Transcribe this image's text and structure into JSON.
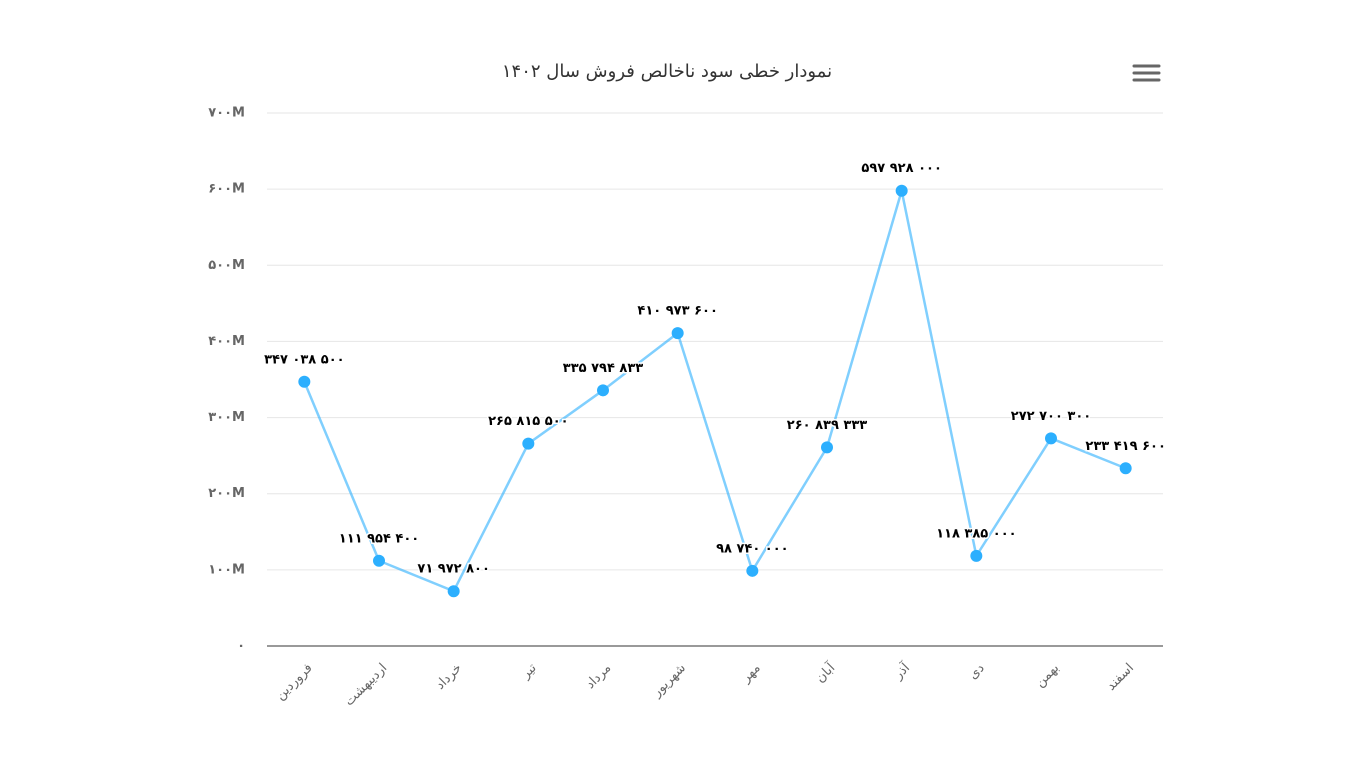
{
  "chart_data": {
    "type": "line",
    "title": "نمودار خطی سود ناخالص فروش سال ۱۴۰۲",
    "categories": [
      "فروردین",
      "اردیبهشت",
      "خرداد",
      "تیر",
      "مرداد",
      "شهریور",
      "مهر",
      "آبان",
      "آذر",
      "دی",
      "بهمن",
      "اسفند"
    ],
    "values": [
      347038500,
      111954400,
      71972800,
      265815500,
      335794833,
      410973600,
      98740000,
      260839333,
      597928000,
      118385000,
      272700300,
      233419600
    ],
    "value_labels": [
      "۳۴۷ ۰۳۸ ۵۰۰",
      "۱۱۱ ۹۵۴ ۴۰۰",
      "۷۱ ۹۷۲ ۸۰۰",
      "۲۶۵ ۸۱۵ ۵۰۰",
      "۳۳۵ ۷۹۴ ۸۳۳",
      "۴۱۰ ۹۷۳ ۶۰۰",
      "۹۸ ۷۴۰ ۰۰۰",
      "۲۶۰ ۸۳۹ ۳۳۳",
      "۵۹۷ ۹۲۸ ۰۰۰",
      "۱۱۸ ۳۸۵ ۰۰۰",
      "۲۷۲ ۷۰۰ ۳۰۰",
      "۲۳۳ ۴۱۹ ۶۰۰"
    ],
    "color": "#2caffe",
    "ylim": [
      0,
      700000000
    ],
    "yticks": [
      {
        "value": 0,
        "label": "۰"
      },
      {
        "value": 100000000,
        "label": "۱۰۰M"
      },
      {
        "value": 200000000,
        "label": "۲۰۰M"
      },
      {
        "value": 300000000,
        "label": "۳۰۰M"
      },
      {
        "value": 400000000,
        "label": "۴۰۰M"
      },
      {
        "value": 500000000,
        "label": "۵۰۰M"
      },
      {
        "value": 600000000,
        "label": "۶۰۰M"
      },
      {
        "value": 700000000,
        "label": "۷۰۰M"
      }
    ],
    "grid": true
  }
}
